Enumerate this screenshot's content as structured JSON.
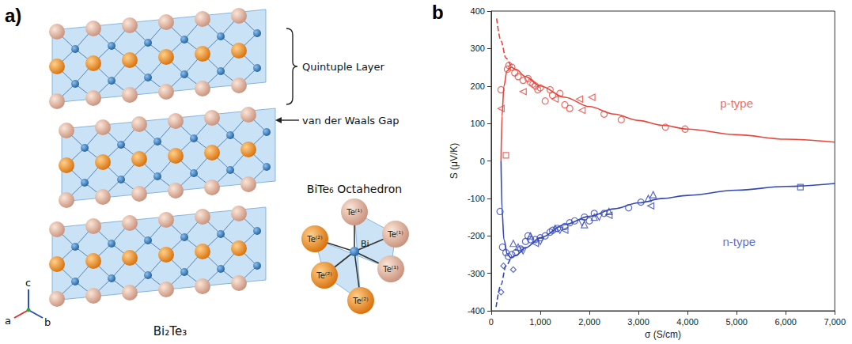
{
  "panel_labels": [
    "a)",
    "b)"
  ],
  "panel_a": {
    "structure_label": "Bi₂Te₃",
    "layer_label": "Quintuple Layer",
    "gap_label": "van der Waals Gap",
    "axes": [
      "a",
      "b",
      "c"
    ],
    "octahedron": {
      "title": "BiTe₆ Octahedron",
      "center": "Bi",
      "atoms": [
        "Te⁽¹⁾",
        "Te⁽¹⁾",
        "Te⁽¹⁾",
        "Te⁽²⁾",
        "Te⁽²⁾",
        "Te⁽²⁾"
      ]
    }
  },
  "chart_data": {
    "type": "scatter",
    "x_label": "σ (S/cm)",
    "y_label": "S (μV/K)",
    "xlim": [
      0,
      7000
    ],
    "xticks": [
      0,
      1000,
      2000,
      3000,
      4000,
      5000,
      6000,
      7000
    ],
    "ylim": [
      -400,
      400
    ],
    "yticks": [
      -400,
      -300,
      -200,
      -100,
      0,
      100,
      200,
      300,
      400
    ],
    "grid": false,
    "series": [
      {
        "type": "line",
        "color": "#e8453c",
        "line_style": "solid",
        "x": [
          200,
          220,
          260,
          320,
          400,
          500,
          700,
          1000,
          1500,
          2000,
          2500,
          3000,
          3500,
          4000,
          5000,
          6000,
          7000
        ],
        "values": [
          0,
          120,
          200,
          240,
          250,
          245,
          225,
          200,
          170,
          145,
          125,
          108,
          95,
          85,
          70,
          58,
          50
        ]
      },
      {
        "type": "line",
        "color": "#e8453c",
        "line_style": "dashed",
        "x": [
          110,
          200,
          300,
          400
        ],
        "values": [
          380,
          320,
          275,
          252
        ]
      },
      {
        "type": "line",
        "color": "#3448b5",
        "line_style": "solid",
        "x": [
          200,
          220,
          260,
          330,
          400,
          500,
          700,
          1000,
          1500,
          2000,
          2500,
          3000,
          3500,
          4000,
          5000,
          6000,
          7000
        ],
        "values": [
          0,
          -130,
          -210,
          -250,
          -258,
          -252,
          -232,
          -205,
          -170,
          -148,
          -128,
          -112,
          -100,
          -92,
          -78,
          -68,
          -60
        ]
      },
      {
        "type": "line",
        "color": "#3448b5",
        "line_style": "dashed",
        "x": [
          100,
          200,
          300,
          400
        ],
        "values": [
          -390,
          -330,
          -280,
          -258
        ]
      },
      {
        "type": "scatter",
        "color": "#e8453c",
        "marker": "circle",
        "x": [
          200,
          330,
          360,
          420,
          480,
          550,
          650,
          750,
          800,
          850,
          900,
          950,
          1000,
          1100,
          1200,
          1250,
          1400,
          1500,
          1600,
          2300,
          2650,
          3550,
          3950
        ],
        "values": [
          190,
          245,
          255,
          250,
          235,
          225,
          215,
          220,
          210,
          205,
          200,
          190,
          195,
          160,
          190,
          175,
          180,
          150,
          140,
          125,
          110,
          90,
          85
        ]
      },
      {
        "type": "scatter",
        "color": "#e8453c",
        "marker": "triangle-left",
        "x": [
          200,
          650,
          1300,
          1800,
          1850,
          2050
        ],
        "values": [
          140,
          185,
          165,
          165,
          135,
          170
        ]
      },
      {
        "type": "scatter",
        "color": "#e8453c",
        "marker": "square",
        "x": [
          300
        ],
        "values": [
          15
        ]
      },
      {
        "type": "scatter",
        "color": "#3448b5",
        "marker": "circle",
        "x": [
          180,
          230,
          300,
          350,
          420,
          500,
          600,
          700,
          750,
          800,
          900,
          1000,
          1100,
          1200,
          1250,
          1350,
          1500,
          1600,
          1700,
          1900,
          2000,
          2100,
          2300,
          2800,
          3050
        ],
        "values": [
          -135,
          -230,
          -245,
          -255,
          -250,
          -245,
          -235,
          -215,
          -200,
          -210,
          -210,
          -205,
          -200,
          -190,
          -185,
          -180,
          -175,
          -165,
          -160,
          -150,
          -160,
          -140,
          -140,
          -125,
          -110
        ]
      },
      {
        "type": "scatter",
        "color": "#3448b5",
        "marker": "triangle",
        "x": [
          450,
          550,
          800,
          1300,
          1900,
          2100,
          2400,
          3200,
          3300
        ],
        "values": [
          -220,
          -230,
          -200,
          -180,
          -170,
          -150,
          -135,
          -100,
          -90
        ]
      },
      {
        "type": "scatter",
        "color": "#3448b5",
        "marker": "triangle-down",
        "x": [
          650,
          1000,
          1400,
          1850,
          2200
        ],
        "values": [
          -240,
          -215,
          -185,
          -165,
          -150
        ]
      },
      {
        "type": "scatter",
        "color": "#3448b5",
        "marker": "triangle-left",
        "x": [
          900,
          1500,
          2400,
          3250
        ],
        "values": [
          -220,
          -185,
          -145,
          -120
        ]
      },
      {
        "type": "scatter",
        "color": "#3448b5",
        "marker": "diamond",
        "x": [
          200,
          250,
          450
        ],
        "values": [
          -350,
          -280,
          -290
        ]
      },
      {
        "type": "scatter",
        "color": "#3448b5",
        "marker": "square",
        "x": [
          6300
        ],
        "values": [
          -70
        ]
      }
    ],
    "annotations": [
      {
        "text": "p-type",
        "x": 5000,
        "y": 155,
        "color": "#e8453c"
      },
      {
        "text": "n-type",
        "x": 5050,
        "y": -215,
        "color": "#3448b5"
      }
    ]
  }
}
